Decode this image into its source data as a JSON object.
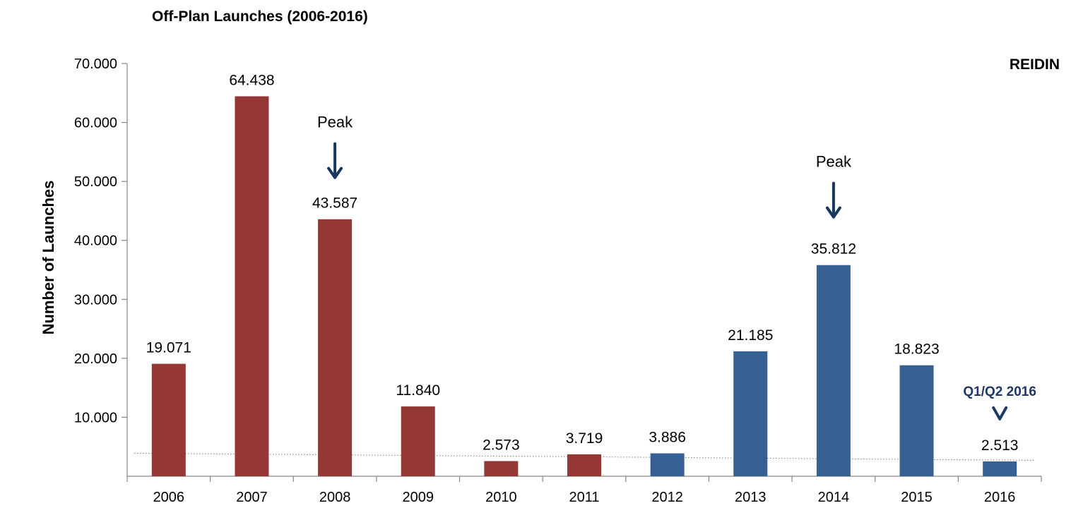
{
  "chart_data": {
    "type": "bar",
    "title": "Off-Plan Launches (2006-2016)",
    "source": "REIDIN",
    "xlabel": "",
    "ylabel": "Number of Launches",
    "ylim": [
      0,
      70000
    ],
    "yticks": [
      {
        "value": 10000,
        "label": "10.000"
      },
      {
        "value": 20000,
        "label": "20.000"
      },
      {
        "value": 30000,
        "label": "30.000"
      },
      {
        "value": 40000,
        "label": "40.000"
      },
      {
        "value": 50000,
        "label": "50.000"
      },
      {
        "value": 60000,
        "label": "60.000"
      },
      {
        "value": 70000,
        "label": "70.000"
      }
    ],
    "categories": [
      "2006",
      "2007",
      "2008",
      "2009",
      "2010",
      "2011",
      "2012",
      "2013",
      "2014",
      "2015",
      "2016"
    ],
    "values": [
      19071,
      64438,
      43587,
      11840,
      2573,
      3719,
      3886,
      21185,
      35812,
      18823,
      2513
    ],
    "value_labels": [
      "19.071",
      "64.438",
      "43.587",
      "11.840",
      "2.573",
      "3.719",
      "3.886",
      "21.185",
      "35.812",
      "18.823",
      "2.513"
    ],
    "bar_colors": [
      "#953735",
      "#953735",
      "#953735",
      "#953735",
      "#953735",
      "#953735",
      "#366092",
      "#366092",
      "#366092",
      "#366092",
      "#366092"
    ],
    "grid": false,
    "trendline": {
      "style": "dotted",
      "start": 3900,
      "end": 2700,
      "color": "#7f7f7f"
    },
    "annotations": [
      {
        "text": "Peak",
        "category": "2008",
        "value": 60000,
        "arrow": true,
        "color": "#17375e"
      },
      {
        "text": "Peak",
        "category": "2014",
        "value": 53300,
        "arrow": true,
        "color": "#17375e"
      },
      {
        "text": "Q1/Q2 2016",
        "category": "2016",
        "value": 14500,
        "arrow": true,
        "color": "#1f3864"
      }
    ]
  }
}
